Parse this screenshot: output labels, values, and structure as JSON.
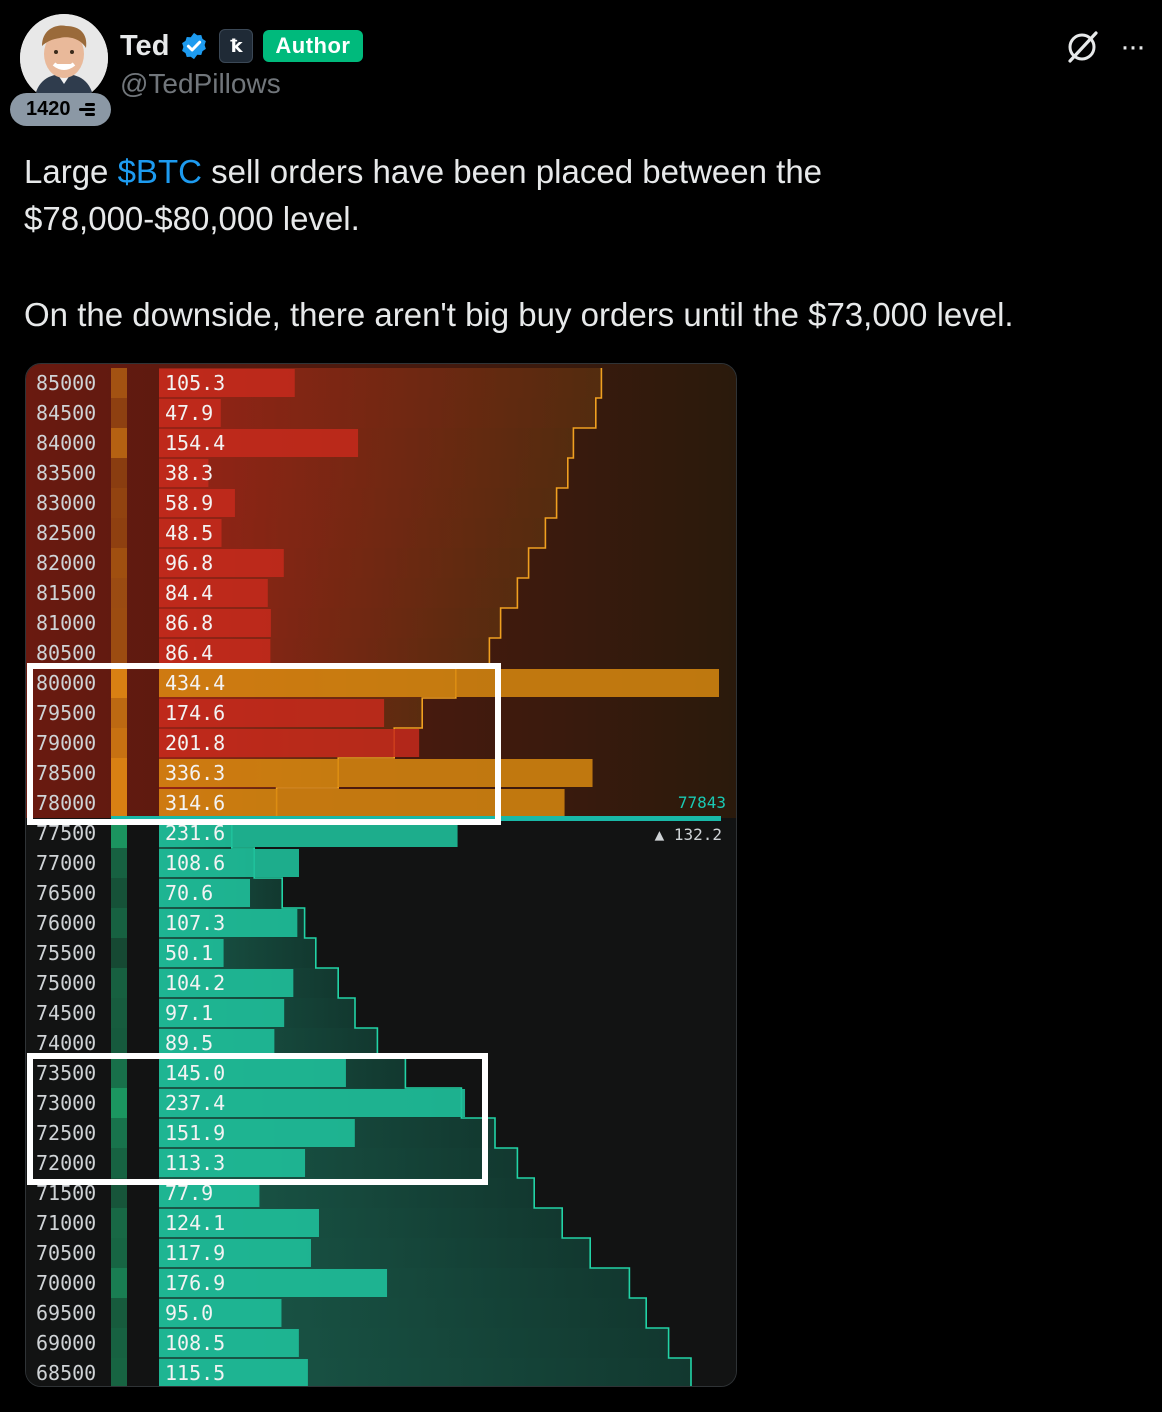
{
  "post": {
    "author_name": "Ted",
    "handle": "@TedPillows",
    "author_badge": "Author",
    "affiliate_glyph": "ꝁ",
    "score_badge": "1420",
    "text_line1_pre": "Large ",
    "cashtag": "$BTC",
    "text_line1_post": " sell orders have been placed between the",
    "text_line2": "$78,000-$80,000 level.",
    "text_line3": "On the downside, there aren't big buy orders until the $73,000 level.",
    "more_label": "···"
  },
  "colors": {
    "accent_blue": "#1d9bf0",
    "author_green": "#00ba7c",
    "ask_red": "#c62a1c",
    "bid_teal": "#1fbf9a"
  },
  "chart_data": {
    "type": "orderbook",
    "current_price": "77843",
    "current_change": "▲ 132.2",
    "levels": [
      {
        "price": "85000",
        "size": "105.3",
        "side": "ask",
        "size_num": 105.3,
        "cum": 0.79
      },
      {
        "price": "84500",
        "size": "47.9",
        "side": "ask",
        "size_num": 47.9,
        "cum": 0.78
      },
      {
        "price": "84000",
        "size": "154.4",
        "side": "ask",
        "size_num": 154.4,
        "cum": 0.74
      },
      {
        "price": "83500",
        "size": "38.3",
        "side": "ask",
        "size_num": 38.3,
        "cum": 0.73
      },
      {
        "price": "83000",
        "size": "58.9",
        "side": "ask",
        "size_num": 58.9,
        "cum": 0.71
      },
      {
        "price": "82500",
        "size": "48.5",
        "side": "ask",
        "size_num": 48.5,
        "cum": 0.69
      },
      {
        "price": "82000",
        "size": "96.8",
        "side": "ask",
        "size_num": 96.8,
        "cum": 0.66
      },
      {
        "price": "81500",
        "size": "84.4",
        "side": "ask",
        "size_num": 84.4,
        "cum": 0.64
      },
      {
        "price": "81000",
        "size": "86.8",
        "side": "ask",
        "size_num": 86.8,
        "cum": 0.61
      },
      {
        "price": "80500",
        "size": "86.4",
        "side": "ask",
        "size_num": 86.4,
        "cum": 0.59
      },
      {
        "price": "80000",
        "size": "434.4",
        "side": "ask",
        "size_num": 434.4,
        "cum": 0.53
      },
      {
        "price": "79500",
        "size": "174.6",
        "side": "ask",
        "size_num": 174.6,
        "cum": 0.47
      },
      {
        "price": "79000",
        "size": "201.8",
        "side": "ask",
        "size_num": 201.8,
        "cum": 0.42
      },
      {
        "price": "78500",
        "size": "336.3",
        "side": "ask",
        "size_num": 336.3,
        "cum": 0.32
      },
      {
        "price": "78000",
        "size": "314.6",
        "side": "ask",
        "size_num": 314.6,
        "cum": 0.21
      },
      {
        "price": "77500",
        "size": "231.6",
        "side": "bid",
        "size_num": 231.6,
        "cum": 0.13
      },
      {
        "price": "77000",
        "size": "108.6",
        "side": "bid",
        "size_num": 108.6,
        "cum": 0.17
      },
      {
        "price": "76500",
        "size": "70.6",
        "side": "bid",
        "size_num": 70.6,
        "cum": 0.22
      },
      {
        "price": "76000",
        "size": "107.3",
        "side": "bid",
        "size_num": 107.3,
        "cum": 0.26
      },
      {
        "price": "75500",
        "size": "50.1",
        "side": "bid",
        "size_num": 50.1,
        "cum": 0.28
      },
      {
        "price": "75000",
        "size": "104.2",
        "side": "bid",
        "size_num": 104.2,
        "cum": 0.32
      },
      {
        "price": "74500",
        "size": "97.1",
        "side": "bid",
        "size_num": 97.1,
        "cum": 0.35
      },
      {
        "price": "74000",
        "size": "89.5",
        "side": "bid",
        "size_num": 89.5,
        "cum": 0.39
      },
      {
        "price": "73500",
        "size": "145.0",
        "side": "bid",
        "size_num": 145.0,
        "cum": 0.44
      },
      {
        "price": "73000",
        "size": "237.4",
        "side": "bid",
        "size_num": 237.4,
        "cum": 0.54
      },
      {
        "price": "72500",
        "size": "151.9",
        "side": "bid",
        "size_num": 151.9,
        "cum": 0.6
      },
      {
        "price": "72000",
        "size": "113.3",
        "side": "bid",
        "size_num": 113.3,
        "cum": 0.64
      },
      {
        "price": "71500",
        "size": "77.9",
        "side": "bid",
        "size_num": 77.9,
        "cum": 0.67
      },
      {
        "price": "71000",
        "size": "124.1",
        "side": "bid",
        "size_num": 124.1,
        "cum": 0.72
      },
      {
        "price": "70500",
        "size": "117.9",
        "side": "bid",
        "size_num": 117.9,
        "cum": 0.77
      },
      {
        "price": "70000",
        "size": "176.9",
        "side": "bid",
        "size_num": 176.9,
        "cum": 0.84
      },
      {
        "price": "69500",
        "size": "95.0",
        "side": "bid",
        "size_num": 95.0,
        "cum": 0.87
      },
      {
        "price": "69000",
        "size": "108.5",
        "side": "bid",
        "size_num": 108.5,
        "cum": 0.91
      },
      {
        "price": "68500",
        "size": "115.5",
        "side": "bid",
        "size_num": 115.5,
        "cum": 0.95
      }
    ],
    "highlight_ranges": [
      [
        "80000",
        "78000"
      ],
      [
        "73500",
        "72000"
      ]
    ]
  }
}
